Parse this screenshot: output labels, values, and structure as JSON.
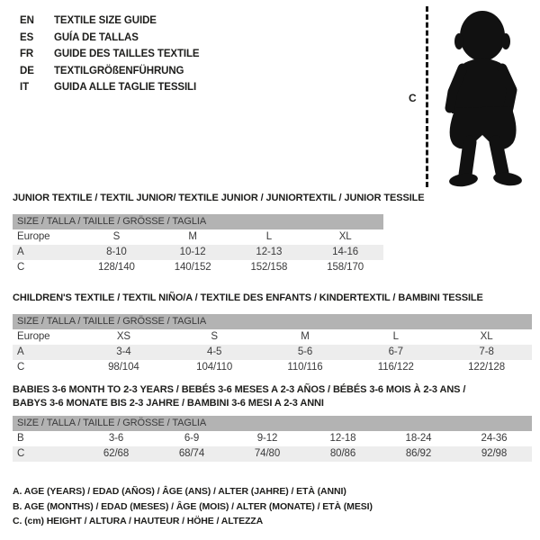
{
  "colors": {
    "background": "#ffffff",
    "text": "#1d1d1b",
    "table_text": "#3a3a3b",
    "header_band": "#b3b3b3",
    "row_stripe": "#ededed",
    "silhouette": "#111111"
  },
  "languages": [
    {
      "code": "EN",
      "label": "TEXTILE SIZE GUIDE"
    },
    {
      "code": "ES",
      "label": "GUÍA DE TALLAS"
    },
    {
      "code": "FR",
      "label": "GUIDE DES TAILLES TEXTILE"
    },
    {
      "code": "DE",
      "label": "TEXTILGRÖßENFÜHRUNG"
    },
    {
      "code": "IT",
      "label": "GUIDA ALLE TAGLIE TESSILI"
    }
  ],
  "figure": {
    "height_label": "C"
  },
  "tables": [
    {
      "title_lines": [
        "JUNIOR TEXTILE / TEXTIL JUNIOR/ TEXTILE JUNIOR / JUNIORTEXTIL / JUNIOR TESSILE"
      ],
      "size_header": "SIZE / TALLA / TAILLE / GRÖSSE / TAGLIA",
      "rows": [
        {
          "label": "Europe",
          "cells": [
            "S",
            "M",
            "L",
            "XL"
          ]
        },
        {
          "label": "A",
          "cells": [
            "8-10",
            "10-12",
            "12-13",
            "14-16"
          ]
        },
        {
          "label": "C",
          "cells": [
            "128/140",
            "140/152",
            "152/158",
            "158/170"
          ]
        }
      ]
    },
    {
      "title_lines": [
        "CHILDREN'S TEXTILE / TEXTIL NIÑO/A / TEXTILE DES ENFANTS / KINDERTEXTIL / BAMBINI TESSILE"
      ],
      "size_header": "SIZE / TALLA / TAILLE / GRÖSSE / TAGLIA",
      "rows": [
        {
          "label": "Europe",
          "cells": [
            "XS",
            "S",
            "M",
            "L",
            "XL"
          ]
        },
        {
          "label": "A",
          "cells": [
            "3-4",
            "4-5",
            "5-6",
            "6-7",
            "7-8"
          ]
        },
        {
          "label": "C",
          "cells": [
            "98/104",
            "104/110",
            "110/116",
            "116/122",
            "122/128"
          ]
        }
      ]
    },
    {
      "title_lines": [
        "BABIES 3-6 MONTH TO 2-3 YEARS / BEBÉS 3-6 MESES A 2-3 AÑOS / BÉBÉS 3-6 MOIS À 2-3 ANS /",
        "BABYS 3-6 MONATE BIS 2-3 JAHRE / BAMBINI 3-6 MESI A 2-3 ANNI"
      ],
      "size_header": "SIZE / TALLA / TAILLE / GRÖSSE / TAGLIA",
      "rows": [
        {
          "label": "B",
          "cells": [
            "3-6",
            "6-9",
            "9-12",
            "12-18",
            "18-24",
            "24-36"
          ]
        },
        {
          "label": "C",
          "cells": [
            "62/68",
            "68/74",
            "74/80",
            "80/86",
            "86/92",
            "92/98"
          ]
        }
      ]
    }
  ],
  "notes": [
    "A. AGE (YEARS) / EDAD (AÑOS) / ÂGE (ANS) / ALTER (JAHRE) / ETÀ (ANNI)",
    "B. AGE (MONTHS) / EDAD (MESES) / ÂGE (MOIS) / ALTER (MONATE) / ETÀ (MESI)",
    "C. (cm) HEIGHT / ALTURA / HAUTEUR / HÖHE / ALTEZZA"
  ]
}
